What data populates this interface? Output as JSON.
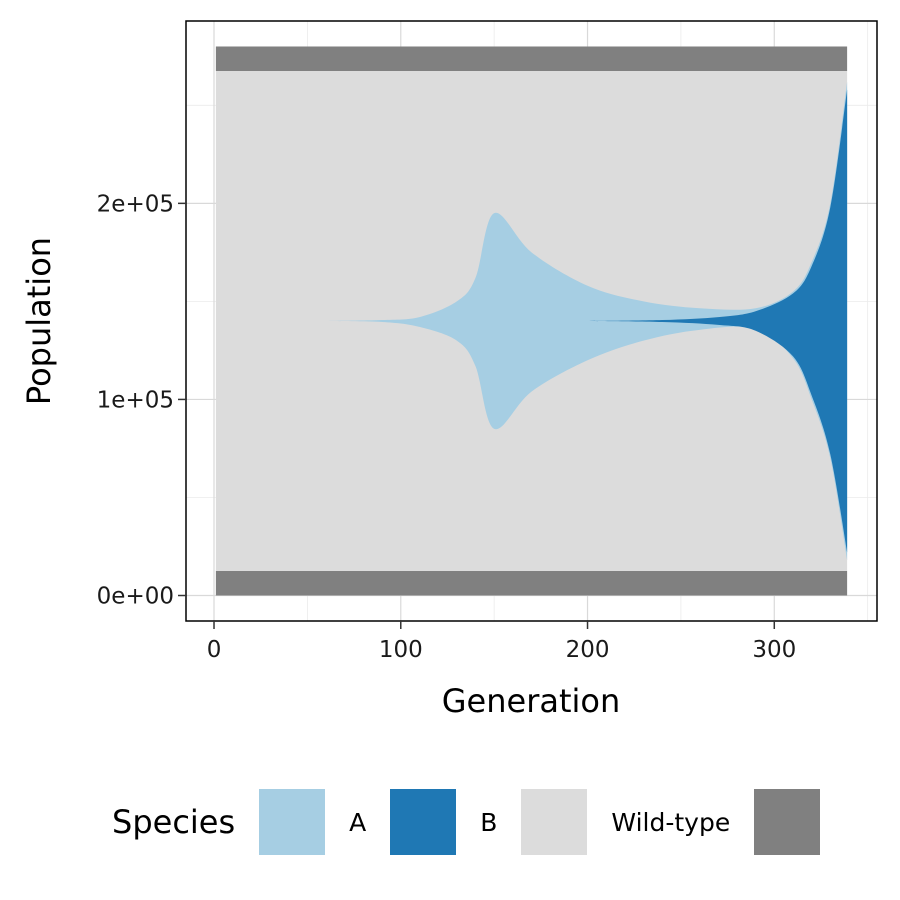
{
  "chart_data": {
    "type": "area",
    "stacking": "centered",
    "xlabel": "Generation",
    "ylabel": "Population",
    "xlim": [
      -15,
      355
    ],
    "ylim": [
      -13000,
      293000
    ],
    "x_ticks": [
      0,
      100,
      200,
      300
    ],
    "x_tick_labels": [
      "0",
      "100",
      "200",
      "300"
    ],
    "y_ticks": [
      0,
      100000,
      200000
    ],
    "y_tick_labels": [
      "0e+00",
      "1e+05",
      "2e+05"
    ],
    "grid": true,
    "legend": {
      "title": "Species",
      "position": "bottom",
      "entries": [
        {
          "label": "A",
          "color": "#a6cee3"
        },
        {
          "label": "B",
          "color": "#1f78b4"
        },
        {
          "label": "Wild-type",
          "color": "#dcdcdc"
        },
        {
          "label": "",
          "color": "#808080"
        }
      ]
    },
    "center": 140000,
    "base": {
      "color": "#808080",
      "bands": [
        [
          0,
          12500
        ],
        [
          267500,
          280000
        ]
      ],
      "x_range": [
        1,
        339
      ]
    },
    "wild_type": {
      "color": "#dcdcdc",
      "lower": 12500,
      "upper": 267500,
      "x_range": [
        1,
        339
      ]
    },
    "species_a": {
      "color": "#a6cee3",
      "x": [
        60,
        90,
        110,
        130,
        140,
        150,
        170,
        200,
        230,
        260,
        290,
        310,
        320,
        330,
        339
      ],
      "upper": [
        140000,
        140500,
        142000,
        150000,
        162000,
        195000,
        175000,
        158000,
        150000,
        146500,
        146500,
        155000,
        170000,
        200000,
        262000
      ],
      "lower": [
        140000,
        139500,
        137000,
        130000,
        117000,
        85000,
        104000,
        120000,
        130000,
        135500,
        136000,
        121000,
        100000,
        70000,
        18000
      ]
    },
    "species_b": {
      "color": "#1f78b4",
      "x": [
        200,
        240,
        270,
        290,
        310,
        320,
        330,
        339
      ],
      "upper": [
        140000,
        140500,
        142000,
        145000,
        154000,
        168000,
        198000,
        258000
      ],
      "lower": [
        140000,
        139500,
        138000,
        135000,
        122000,
        102000,
        72000,
        22000
      ]
    }
  }
}
